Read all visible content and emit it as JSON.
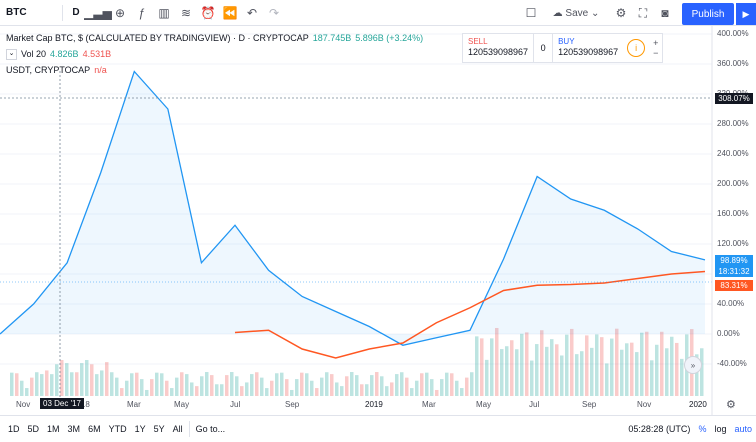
{
  "toolbar": {
    "symbol": "BTC",
    "interval": "D",
    "icons": [
      "bar-chart-icon",
      "add-symbol-icon",
      "indicators-icon",
      "templates-icon",
      "compare-icon",
      "alert-icon",
      "replay-icon",
      "undo-icon",
      "redo-icon"
    ],
    "save_label": "Save",
    "publish_label": "Publish"
  },
  "legend": {
    "title": "Market Cap BTC, $ (CALCULATED BY TRADINGVIEW) · D · CRYPTOCAP",
    "last": "187.745B",
    "change": "5.896B (+3.24%)",
    "vol_label": "Vol 20",
    "vol_value1": "4.826B",
    "vol_value2": "4.531B",
    "compare_label": "USDT, CRYPTOCAP",
    "compare_value": "n/a"
  },
  "trade": {
    "sell_label": "SELL",
    "sell_value": "120539098967",
    "spread": "0",
    "buy_label": "BUY",
    "buy_value": "120539098967"
  },
  "axis": {
    "y_ticks": [
      "400.00%",
      "360.00%",
      "320.00%",
      "280.00%",
      "240.00%",
      "200.00%",
      "160.00%",
      "120.00%",
      "80.00%",
      "40.00%",
      "0.00%",
      "-40.00%"
    ],
    "x_ticks": [
      "Nov",
      "2018",
      "Mar",
      "May",
      "Jul",
      "Sep",
      "2019",
      "Mar",
      "May",
      "Jul",
      "Sep",
      "Nov",
      "2020"
    ],
    "crosshair_value": "308.07%",
    "btc_tag": "98.89%",
    "countdown_tag": "18:31:32",
    "usdt_tag": "83.31%",
    "crosshair_date": "03 Dec '17"
  },
  "bottombar": {
    "ranges": [
      "1D",
      "5D",
      "1M",
      "3M",
      "6M",
      "YTD",
      "1Y",
      "5Y",
      "All"
    ],
    "goto_label": "Go to...",
    "clock": "05:28:28 (UTC)",
    "percent_label": "%",
    "log_label": "log",
    "auto_label": "auto"
  },
  "colors": {
    "btc_line": "#2196f3",
    "usdt_line": "#ff5722",
    "accent": "#2962ff",
    "vol_up": "#26a69a",
    "vol_down": "#ef5350"
  },
  "chart_data": {
    "type": "line",
    "series": [
      {
        "name": "Market Cap BTC",
        "values": [
          0,
          40,
          95,
          215,
          350,
          300,
          95,
          145,
          85,
          50,
          30,
          10,
          -15,
          -5,
          5,
          100,
          210,
          180,
          165,
          140,
          110,
          98.89
        ]
      },
      {
        "name": "USDT, CRYPTOCAP",
        "values": [
          null,
          null,
          null,
          null,
          null,
          null,
          null,
          2,
          5,
          -20,
          -32,
          -20,
          -12,
          15,
          35,
          58,
          65,
          66,
          68,
          74,
          80,
          83.31
        ]
      }
    ],
    "ylim": [
      -40,
      400
    ]
  }
}
